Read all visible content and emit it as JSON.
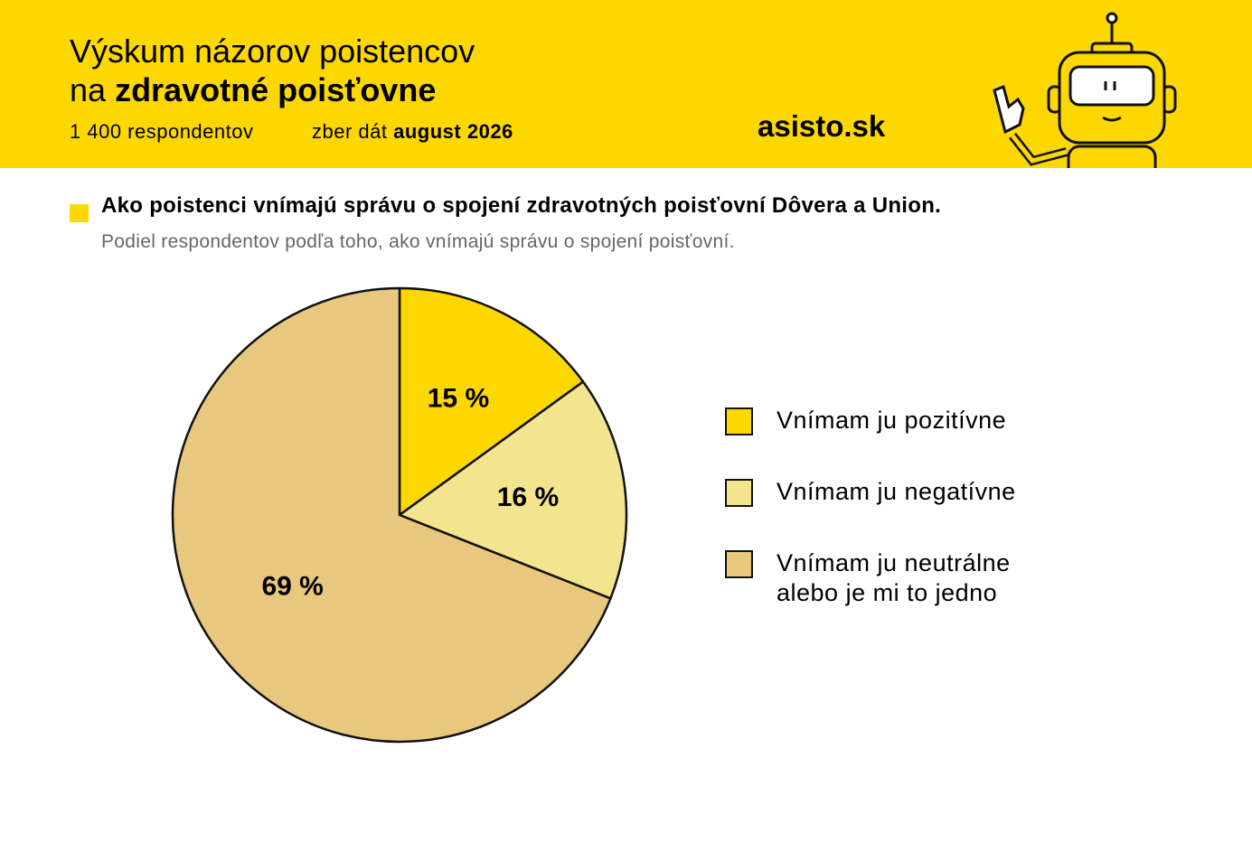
{
  "header": {
    "title_line1": "Výskum názorov poistencov",
    "title_line2_prefix": "na",
    "title_line2_bold": "zdravotné poisťovne",
    "respondents": "1 400 respondentov",
    "collection_label": "zber dát",
    "collection_date": "august 2026",
    "brand": "asisto.sk"
  },
  "chart_data": {
    "type": "pie",
    "title": "Ako poistenci vnímajú správu o spojení zdravotných poisťovní Dôvera a Union.",
    "subtitle": "Podiel respondentov podľa toho, ako vnímajú správu o spojení poisťovní.",
    "series": [
      {
        "name": "Vnímam ju pozitívne",
        "color": "#fcd800",
        "values": [
          15
        ],
        "value_labels": [
          "15 %"
        ]
      },
      {
        "name": "Vnímam ju negatívne",
        "color": "#f3e48e",
        "values": [
          16
        ],
        "value_labels": [
          "16 %"
        ]
      },
      {
        "name": "Vnímam ju neutrálne alebo je mi to jedno",
        "color": "#e8c87e",
        "values": [
          69
        ],
        "value_labels": [
          "69 %"
        ]
      }
    ]
  }
}
